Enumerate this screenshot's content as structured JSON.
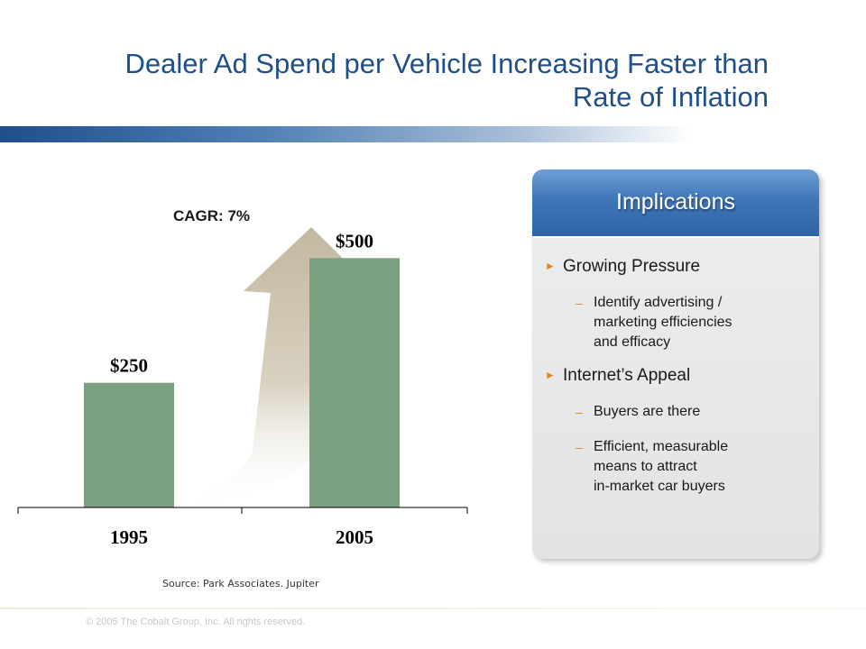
{
  "title": "Dealer Ad Spend per Vehicle Increasing Faster than Rate of Inflation",
  "cagr_label": "CAGR: 7%",
  "source": "Source: Park Associates. Jupiter",
  "copyright": "© 2005 The Cobalt Group, Inc. All rights reserved.",
  "colors": {
    "title": "#1f4f8a",
    "bar": "#7aa07f",
    "arrow": "#c9bfa9",
    "accent_bullet": "#e0881a",
    "panel_header": "#3f76b8"
  },
  "chart_data": {
    "type": "bar",
    "categories": [
      "1995",
      "2005"
    ],
    "values": [
      250,
      500
    ],
    "value_labels": [
      "$250",
      "$500"
    ],
    "title": "",
    "xlabel": "",
    "ylabel": "",
    "ylim": [
      0,
      600
    ],
    "grid": false,
    "annotation": "CAGR: 7%"
  },
  "implications": {
    "header": "Implications",
    "items": [
      {
        "label": "Growing Pressure",
        "subs": [
          [
            "Identify advertising /",
            "marketing efficiencies",
            "and efficacy"
          ]
        ]
      },
      {
        "label": "Internet’s Appeal",
        "subs": [
          [
            "Buyers are there"
          ],
          [
            "Efficient, measurable",
            "means to attract",
            "in-market car buyers"
          ]
        ]
      }
    ]
  }
}
